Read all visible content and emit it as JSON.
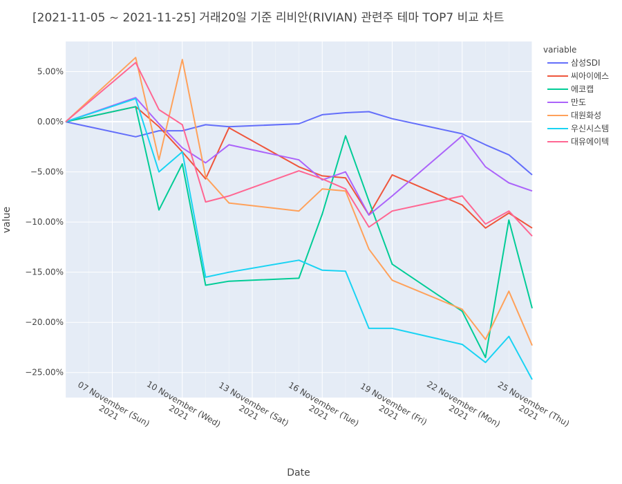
{
  "chart_data": {
    "type": "line",
    "title": "[2021-11-05 ~ 2021-11-25] 거래20일 기준 리비안(RIVIAN) 관련주 테마 TOP7 비교 차트",
    "xlabel": "Date",
    "ylabel": "value",
    "legend_title": "variable",
    "x": [
      "2021-11-05",
      "2021-11-08",
      "2021-11-09",
      "2021-11-10",
      "2021-11-11",
      "2021-11-12",
      "2021-11-15",
      "2021-11-16",
      "2021-11-17",
      "2021-11-18",
      "2021-11-19",
      "2021-11-22",
      "2021-11-23",
      "2021-11-24",
      "2021-11-25"
    ],
    "xlim": [
      "2021-11-05",
      "2021-11-25"
    ],
    "ylim": [
      -27.5,
      8
    ],
    "y_ticks": [
      5,
      0,
      -5,
      -10,
      -15,
      -20,
      -25
    ],
    "y_tick_labels": [
      "5.00%",
      "0.00%",
      "−5.00%",
      "−10.00%",
      "−15.00%",
      "−20.00%",
      "−25.00%"
    ],
    "x_ticks": [
      {
        "date": "2021-11-07",
        "line1": "07 November (Sun)",
        "line2": "2021"
      },
      {
        "date": "2021-11-10",
        "line1": "10 November (Wed)",
        "line2": "2021"
      },
      {
        "date": "2021-11-13",
        "line1": "13 November (Sat)",
        "line2": "2021"
      },
      {
        "date": "2021-11-16",
        "line1": "16 November (Tue)",
        "line2": "2021"
      },
      {
        "date": "2021-11-19",
        "line1": "19 November (Fri)",
        "line2": "2021"
      },
      {
        "date": "2021-11-22",
        "line1": "22 November (Mon)",
        "line2": "2021"
      },
      {
        "date": "2021-11-25",
        "line1": "25 November (Thu)",
        "line2": "2021"
      }
    ],
    "series": [
      {
        "name": "삼성SDI",
        "color": "#636efa",
        "values": [
          0,
          -1.5,
          -0.9,
          -0.9,
          -0.3,
          -0.5,
          -0.2,
          0.7,
          0.9,
          1.0,
          0.3,
          -1.2,
          -2.3,
          -3.3,
          -5.3
        ]
      },
      {
        "name": "씨아이에스",
        "color": "#EF553B",
        "values": [
          0,
          1.5,
          -0.5,
          -3.0,
          -5.7,
          -0.6,
          -4.5,
          -5.4,
          -5.6,
          -9.3,
          -5.3,
          -8.3,
          -10.6,
          -9.1,
          -10.6
        ]
      },
      {
        "name": "에코캡",
        "color": "#00cc96",
        "values": [
          0,
          1.5,
          -8.8,
          -4.2,
          -16.3,
          -15.9,
          -15.6,
          -9.2,
          -1.4,
          -7.9,
          -14.2,
          -18.9,
          -23.5,
          -9.8,
          -18.6
        ]
      },
      {
        "name": "만도",
        "color": "#ab63fa",
        "values": [
          0,
          2.4,
          -0.2,
          -2.6,
          -4.1,
          -2.3,
          -3.8,
          -5.8,
          -5.0,
          -9.3,
          -7.4,
          -1.4,
          -4.5,
          -6.1,
          -6.9
        ]
      },
      {
        "name": "대원화성",
        "color": "#FFA15A",
        "values": [
          0,
          6.4,
          -3.8,
          6.2,
          -5.5,
          -8.1,
          -8.9,
          -6.7,
          -6.9,
          -12.7,
          -15.8,
          -18.7,
          -21.7,
          -16.9,
          -22.3
        ]
      },
      {
        "name": "우신시스템",
        "color": "#19d3f3",
        "values": [
          0,
          2.3,
          -5.0,
          -3.0,
          -15.5,
          -15.0,
          -13.8,
          -14.8,
          -14.9,
          -20.6,
          -20.6,
          -22.2,
          -24.0,
          -21.4,
          -25.7
        ]
      },
      {
        "name": "대유에이텍",
        "color": "#FF6692",
        "values": [
          0,
          5.9,
          1.2,
          -0.3,
          -8.0,
          -7.4,
          -4.9,
          -5.7,
          -6.7,
          -10.5,
          -8.9,
          -7.4,
          -10.2,
          -8.9,
          -11.4
        ]
      }
    ]
  }
}
